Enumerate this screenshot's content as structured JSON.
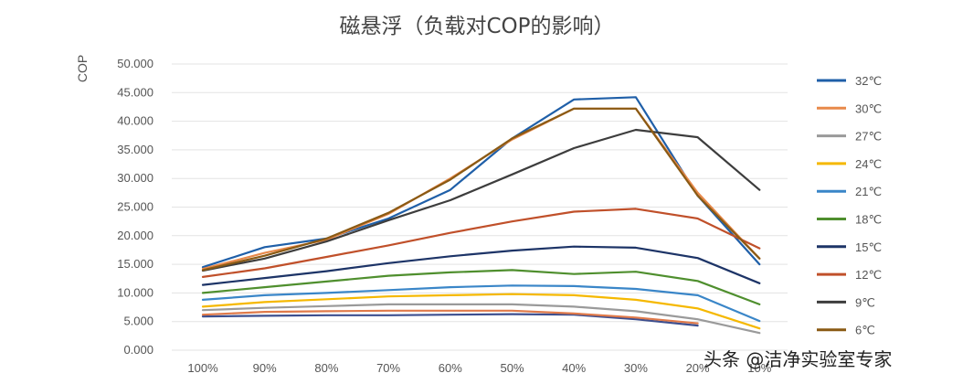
{
  "watermark": "头条 @洁净实验室专家",
  "chart_data": {
    "type": "line",
    "title": "磁悬浮（负载对COP的影响）",
    "xlabel": "",
    "ylabel": "COP",
    "ylim": [
      0,
      50
    ],
    "grid": true,
    "legend_position": "right",
    "categories": [
      "100%",
      "90%",
      "80%",
      "70%",
      "60%",
      "50%",
      "40%",
      "30%",
      "20%",
      "10%"
    ],
    "yticks": [
      "0.000",
      "5.000",
      "10.000",
      "15.000",
      "20.000",
      "25.000",
      "30.000",
      "35.000",
      "40.000",
      "45.000",
      "50.000"
    ],
    "series": [
      {
        "name": "32℃",
        "color": "#1f5fa8",
        "values": [
          14.5,
          18.0,
          19.5,
          23.0,
          28.0,
          37.0,
          43.8,
          44.2,
          27.0,
          15.0
        ]
      },
      {
        "name": "30℃",
        "color": "#e8894a",
        "values": [
          14.2,
          17.0,
          19.3,
          23.8,
          30.0,
          36.8,
          42.2,
          42.2,
          27.5,
          16.0
        ]
      },
      {
        "name": "27℃",
        "color": "#9a9a9a",
        "values": [
          7.0,
          7.4,
          7.7,
          8.0,
          8.0,
          8.0,
          7.6,
          6.8,
          5.4,
          3.0
        ]
      },
      {
        "name": "24℃",
        "color": "#f5b800",
        "values": [
          7.6,
          8.4,
          8.9,
          9.4,
          9.6,
          9.8,
          9.6,
          8.8,
          7.3,
          3.8
        ]
      },
      {
        "name": "21℃",
        "color": "#3a86c8",
        "values": [
          8.8,
          9.6,
          10.0,
          10.5,
          11.0,
          11.3,
          11.2,
          10.7,
          9.6,
          5.1
        ]
      },
      {
        "name": "18℃",
        "color": "#4f8f2e",
        "values": [
          10.0,
          11.0,
          12.0,
          13.0,
          13.6,
          14.0,
          13.3,
          13.7,
          12.1,
          8.0
        ]
      },
      {
        "name": "15℃",
        "color": "#1d3467",
        "values": [
          11.4,
          12.6,
          13.8,
          15.2,
          16.4,
          17.4,
          18.1,
          17.9,
          16.1,
          11.7
        ]
      },
      {
        "name": "12℃",
        "color": "#c0502a",
        "values": [
          12.8,
          14.3,
          16.3,
          18.3,
          20.5,
          22.5,
          24.2,
          24.7,
          23.0,
          17.8
        ]
      },
      {
        "name": "9℃",
        "color": "#3d3d3d",
        "values": [
          13.9,
          16.0,
          19.0,
          22.7,
          26.2,
          30.7,
          35.3,
          38.5,
          37.2,
          28.0
        ]
      },
      {
        "name": "6℃",
        "color": "#8a5a14",
        "values": [
          14.0,
          16.5,
          19.5,
          24.0,
          29.8,
          37.0,
          42.2,
          42.2,
          27.0,
          16.0
        ]
      },
      {
        "name": "",
        "color": "#3d4f8f",
        "values": [
          5.9,
          6.0,
          6.1,
          6.1,
          6.2,
          6.3,
          6.2,
          5.4,
          4.3,
          null
        ]
      },
      {
        "name": "",
        "color": "#e07a4a",
        "values": [
          6.2,
          6.7,
          6.8,
          6.9,
          6.9,
          6.9,
          6.4,
          5.7,
          4.7,
          null
        ]
      }
    ]
  }
}
